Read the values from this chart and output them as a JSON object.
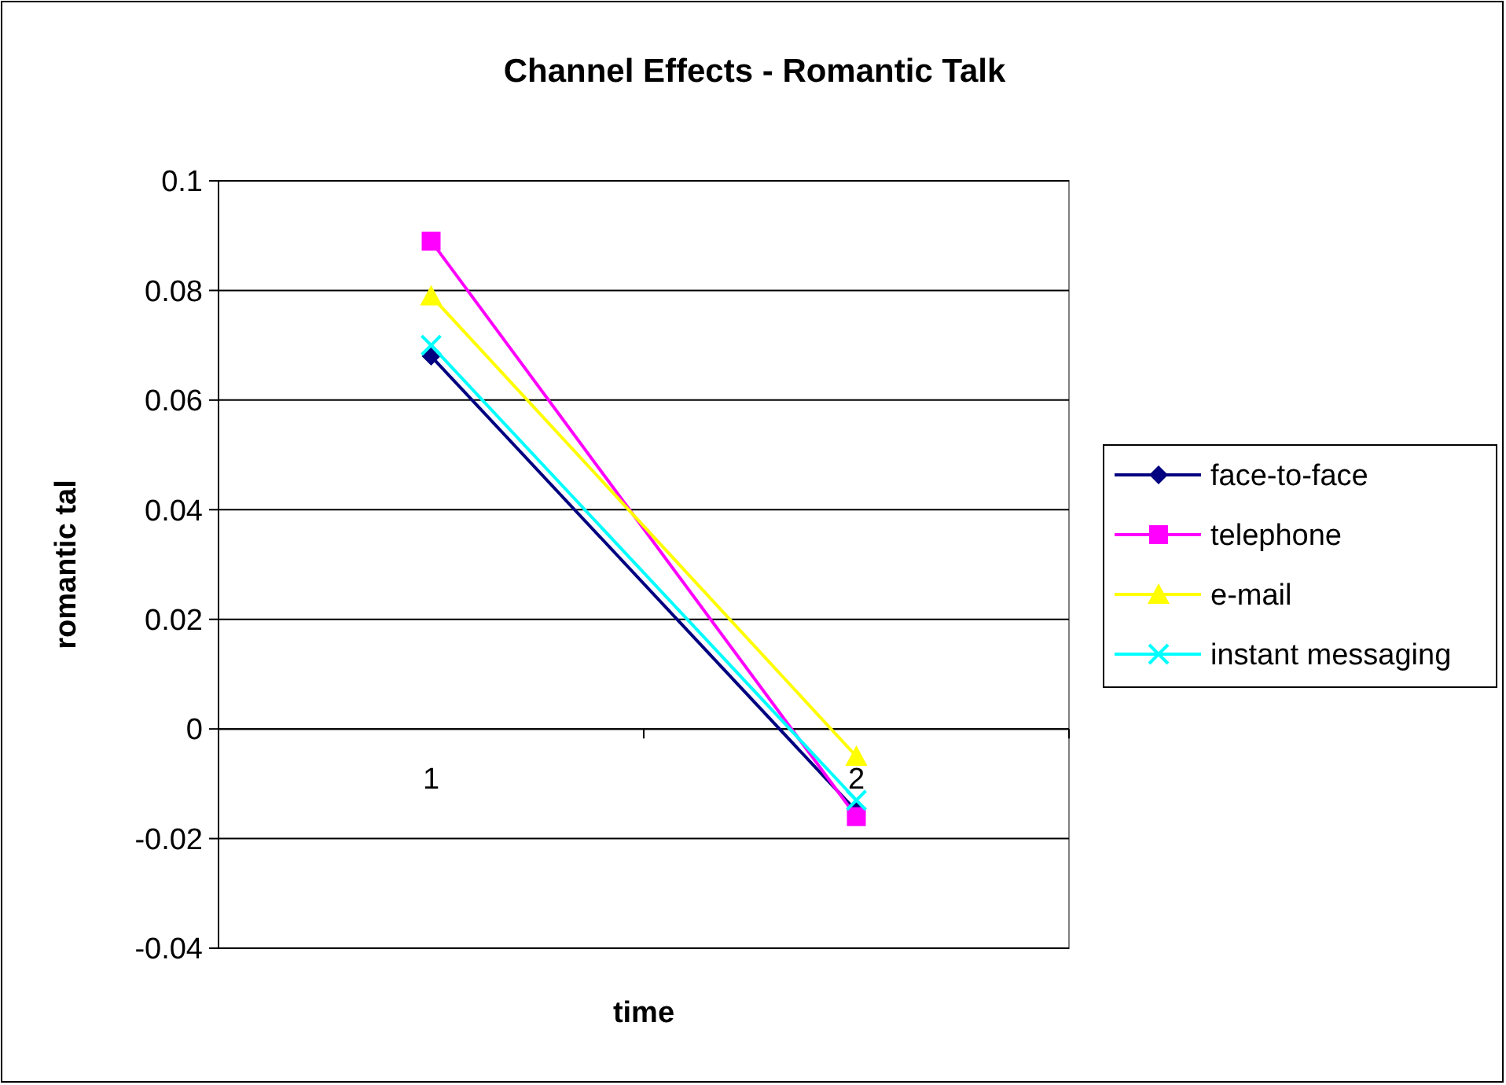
{
  "chart_data": {
    "type": "line",
    "title": "Channel Effects - Romantic Talk",
    "xlabel": "time",
    "ylabel": "romantic tal",
    "categories": [
      "1",
      "2"
    ],
    "series": [
      {
        "name": "face-to-face",
        "color": "#000080",
        "marker": "diamond",
        "values": [
          0.068,
          -0.015
        ]
      },
      {
        "name": "telephone",
        "color": "#ff00ff",
        "marker": "square",
        "values": [
          0.089,
          -0.016
        ]
      },
      {
        "name": "e-mail",
        "color": "#ffff00",
        "marker": "triangle",
        "values": [
          0.079,
          -0.005
        ]
      },
      {
        "name": "instant messaging",
        "color": "#00ffff",
        "marker": "cross",
        "values": [
          0.07,
          -0.013
        ]
      }
    ],
    "ylim": [
      -0.04,
      0.1
    ],
    "yticks": [
      -0.04,
      -0.02,
      0,
      0.02,
      0.04,
      0.06,
      0.08,
      0.1
    ],
    "grid": "y",
    "legend": "right",
    "line_style": "solid"
  }
}
